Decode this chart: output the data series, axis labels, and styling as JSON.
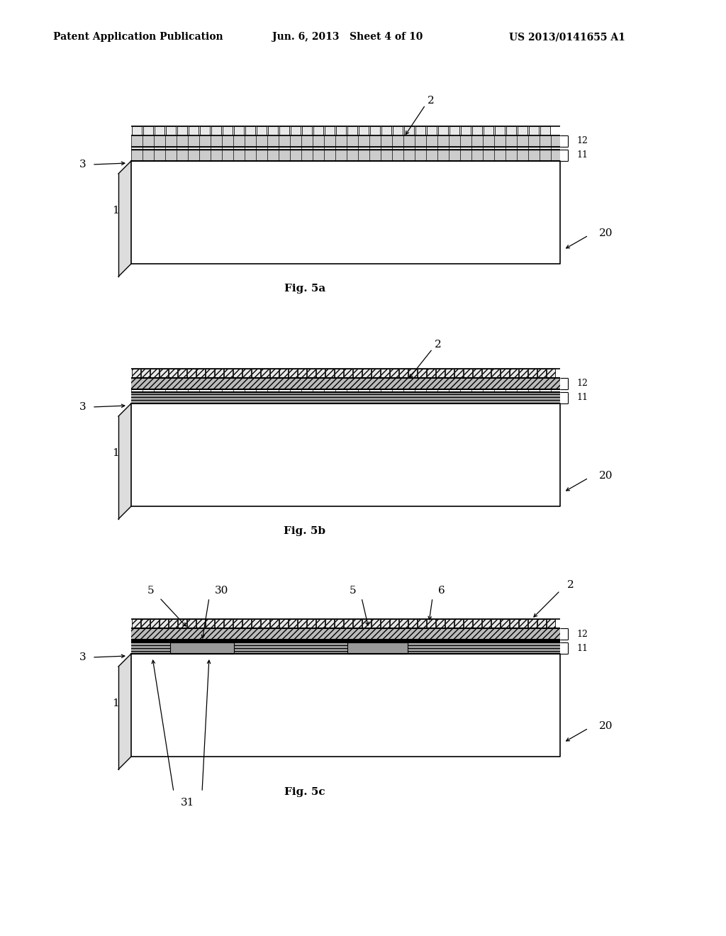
{
  "bg_color": "#ffffff",
  "header_left": "Patent Application Publication",
  "header_mid": "Jun. 6, 2013   Sheet 4 of 10",
  "header_right": "US 2013/0141655 A1",
  "fig5a_caption": "Fig. 5a",
  "fig5b_caption": "Fig. 5b",
  "fig5c_caption": "Fig. 5c",
  "line_color": "#000000"
}
